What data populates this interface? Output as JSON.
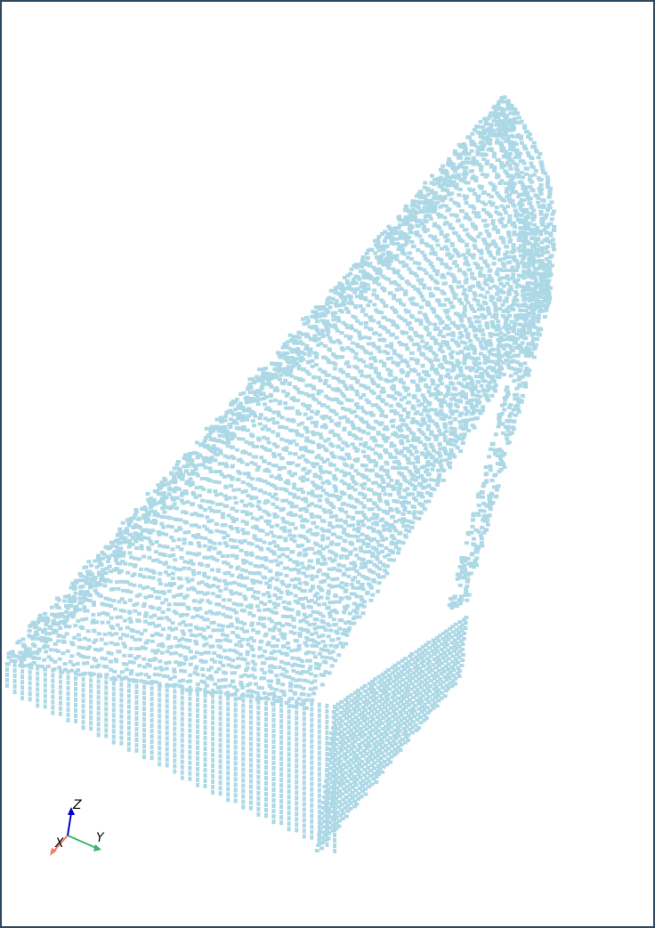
{
  "viewer": {
    "point_color": "#add8e6",
    "background": "#ffffff",
    "border_color": "#2e4a63"
  },
  "axes_triad": {
    "x_label": "X",
    "y_label": "Y",
    "z_label": "Z",
    "x_color": "#f08060",
    "y_color": "#3cb371",
    "z_color": "#0000cd"
  }
}
